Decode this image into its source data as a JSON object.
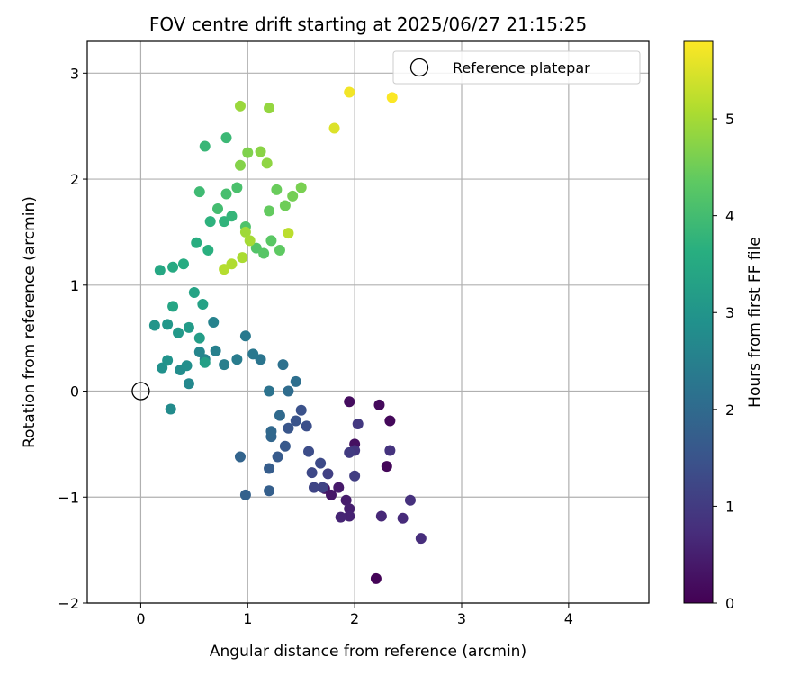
{
  "chart_data": {
    "type": "scatter",
    "title": "FOV centre drift starting at 2025/06/27 21:15:25",
    "xlabel": "Angular distance from reference (arcmin)",
    "ylabel": "Rotation from reference (arcmin)",
    "xlim": [
      -0.5,
      4.75
    ],
    "ylim": [
      -2.0,
      3.3
    ],
    "xticks": [
      0,
      1,
      2,
      3,
      4
    ],
    "yticks": [
      -2,
      -1,
      0,
      1,
      2,
      3
    ],
    "xtick_labels": [
      "0",
      "1",
      "2",
      "3",
      "4"
    ],
    "ytick_labels": [
      "−2",
      "−1",
      "0",
      "1",
      "2",
      "3"
    ],
    "grid": true,
    "legend": {
      "position": "top-right",
      "label": "Reference platepar"
    },
    "reference_point": {
      "x": 0,
      "y": 0
    },
    "colorbar": {
      "label": "Hours from first FF file",
      "colormap": "viridis",
      "range": [
        0,
        5.8
      ],
      "ticks": [
        0,
        1,
        2,
        3,
        4,
        5
      ],
      "tick_labels": [
        "0",
        "1",
        "2",
        "3",
        "4",
        "5"
      ]
    },
    "points": [
      [
        2.2,
        -1.77,
        0.05
      ],
      [
        2.3,
        -0.71,
        0.1
      ],
      [
        2.33,
        -0.28,
        0.12
      ],
      [
        2.23,
        -0.13,
        0.15
      ],
      [
        1.95,
        -0.1,
        0.2
      ],
      [
        2.0,
        -0.5,
        0.25
      ],
      [
        1.72,
        -0.92,
        0.3
      ],
      [
        1.78,
        -0.98,
        0.35
      ],
      [
        1.85,
        -0.91,
        0.4
      ],
      [
        1.92,
        -1.03,
        0.45
      ],
      [
        1.95,
        -1.11,
        0.5
      ],
      [
        1.95,
        -1.18,
        0.55
      ],
      [
        1.87,
        -1.19,
        0.6
      ],
      [
        2.25,
        -1.18,
        0.65
      ],
      [
        2.45,
        -1.2,
        0.7
      ],
      [
        2.62,
        -1.39,
        0.75
      ],
      [
        2.52,
        -1.03,
        0.8
      ],
      [
        2.33,
        -0.56,
        0.85
      ],
      [
        2.0,
        -0.56,
        0.9
      ],
      [
        2.03,
        -0.31,
        0.95
      ],
      [
        1.95,
        -0.58,
        1.0
      ],
      [
        2.0,
        -0.8,
        1.05
      ],
      [
        1.75,
        -0.78,
        1.1
      ],
      [
        1.7,
        -0.91,
        1.15
      ],
      [
        1.62,
        -0.91,
        1.2
      ],
      [
        1.6,
        -0.77,
        1.25
      ],
      [
        1.68,
        -0.68,
        1.3
      ],
      [
        1.57,
        -0.57,
        1.35
      ],
      [
        1.55,
        -0.33,
        1.4
      ],
      [
        1.5,
        -0.18,
        1.45
      ],
      [
        1.45,
        -0.28,
        1.5
      ],
      [
        1.38,
        -0.35,
        1.55
      ],
      [
        1.35,
        -0.52,
        1.6
      ],
      [
        1.28,
        -0.62,
        1.65
      ],
      [
        1.2,
        -0.73,
        1.7
      ],
      [
        1.2,
        -0.94,
        1.75
      ],
      [
        0.98,
        -0.98,
        1.8
      ],
      [
        0.93,
        -0.62,
        1.85
      ],
      [
        1.22,
        -0.43,
        1.9
      ],
      [
        1.22,
        -0.38,
        1.95
      ],
      [
        1.3,
        -0.23,
        2.0
      ],
      [
        1.38,
        0.0,
        2.05
      ],
      [
        1.45,
        0.09,
        2.1
      ],
      [
        1.33,
        0.25,
        2.15
      ],
      [
        1.2,
        0.0,
        2.2
      ],
      [
        1.12,
        0.3,
        2.25
      ],
      [
        1.05,
        0.35,
        2.3
      ],
      [
        0.98,
        0.52,
        2.35
      ],
      [
        0.9,
        0.3,
        2.4
      ],
      [
        0.78,
        0.25,
        2.45
      ],
      [
        0.7,
        0.38,
        2.5
      ],
      [
        0.68,
        0.65,
        2.55
      ],
      [
        0.6,
        0.3,
        2.6
      ],
      [
        0.55,
        0.37,
        2.65
      ],
      [
        0.45,
        0.07,
        2.7
      ],
      [
        0.28,
        -0.17,
        2.75
      ],
      [
        0.37,
        0.2,
        2.8
      ],
      [
        0.43,
        0.24,
        2.85
      ],
      [
        0.2,
        0.22,
        2.9
      ],
      [
        0.25,
        0.29,
        2.95
      ],
      [
        0.13,
        0.62,
        3.0
      ],
      [
        0.25,
        0.63,
        3.05
      ],
      [
        0.35,
        0.55,
        3.1
      ],
      [
        0.45,
        0.6,
        3.15
      ],
      [
        0.55,
        0.5,
        3.2
      ],
      [
        0.6,
        0.27,
        3.25
      ],
      [
        0.58,
        0.82,
        3.3
      ],
      [
        0.5,
        0.93,
        3.35
      ],
      [
        0.3,
        0.8,
        3.4
      ],
      [
        0.18,
        1.14,
        3.45
      ],
      [
        0.3,
        1.17,
        3.5
      ],
      [
        0.4,
        1.2,
        3.55
      ],
      [
        0.52,
        1.4,
        3.6
      ],
      [
        0.63,
        1.33,
        3.65
      ],
      [
        0.65,
        1.6,
        3.7
      ],
      [
        0.78,
        1.6,
        3.75
      ],
      [
        0.85,
        1.65,
        3.8
      ],
      [
        0.6,
        2.31,
        3.85
      ],
      [
        0.8,
        2.39,
        3.9
      ],
      [
        0.55,
        1.88,
        3.95
      ],
      [
        0.72,
        1.72,
        4.0
      ],
      [
        0.8,
        1.86,
        4.05
      ],
      [
        0.9,
        1.92,
        4.1
      ],
      [
        0.98,
        1.55,
        4.15
      ],
      [
        1.08,
        1.35,
        4.2
      ],
      [
        1.15,
        1.3,
        4.25
      ],
      [
        1.22,
        1.42,
        4.3
      ],
      [
        1.3,
        1.33,
        4.35
      ],
      [
        1.2,
        1.7,
        4.4
      ],
      [
        1.27,
        1.9,
        4.45
      ],
      [
        1.35,
        1.75,
        4.5
      ],
      [
        1.42,
        1.84,
        4.55
      ],
      [
        1.5,
        1.92,
        4.6
      ],
      [
        1.0,
        2.25,
        4.65
      ],
      [
        0.93,
        2.13,
        4.7
      ],
      [
        1.12,
        2.26,
        4.75
      ],
      [
        1.18,
        2.15,
        4.8
      ],
      [
        1.2,
        2.67,
        4.85
      ],
      [
        0.93,
        2.69,
        4.9
      ],
      [
        0.98,
        1.5,
        4.95
      ],
      [
        1.02,
        1.42,
        5.0
      ],
      [
        0.95,
        1.26,
        5.05
      ],
      [
        0.85,
        1.2,
        5.1
      ],
      [
        0.78,
        1.15,
        5.15
      ],
      [
        1.38,
        1.49,
        5.2
      ],
      [
        1.81,
        2.48,
        5.5
      ],
      [
        1.95,
        2.82,
        5.7
      ],
      [
        2.35,
        2.77,
        5.78
      ]
    ]
  }
}
